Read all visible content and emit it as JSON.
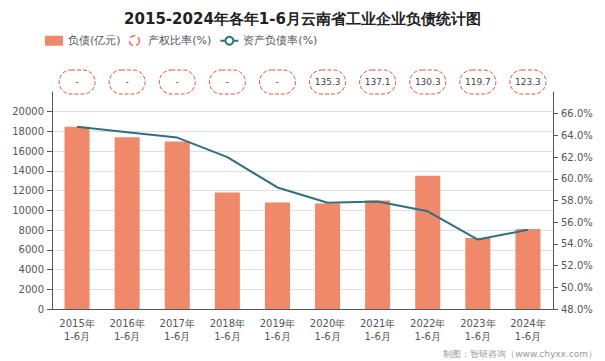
{
  "chart_data": {
    "type": "bar",
    "title": "2015-2024年各年1-6月云南省工业企业负债统计图",
    "categories": [
      "2015年\n1-6月",
      "2016年\n1-6月",
      "2017年\n1-6月",
      "2018年\n1-6月",
      "2019年\n1-6月",
      "2020年\n1-6月",
      "2021年\n1-6月",
      "2022年\n1-6月",
      "2023年\n1-6月",
      "2024年\n1-6月"
    ],
    "series": [
      {
        "name": "负债(亿元)",
        "type": "bar",
        "color": "#F0896A",
        "values": [
          18477,
          17423,
          16985,
          11800,
          10800,
          10700,
          11000,
          13500,
          7200,
          8100
        ]
      },
      {
        "name": "产权比率(%)",
        "type": "label",
        "color": "#E05030",
        "marker": "circle",
        "line_style": "dashed",
        "values": [
          null,
          null,
          null,
          null,
          null,
          135.3,
          137.1,
          130.3,
          119.7,
          123.3
        ],
        "value_labels": [
          "-",
          "-",
          "-",
          "-",
          "-",
          "135.3",
          "137.1",
          "130.3",
          "119.7",
          "123.3"
        ]
      },
      {
        "name": "资产负债率(%)",
        "type": "line",
        "color": "#2E7080",
        "axis": "y2",
        "values": [
          64.8,
          64.3,
          63.8,
          62.0,
          59.2,
          57.8,
          57.9,
          57.0,
          54.4,
          55.3
        ]
      }
    ],
    "ylim": [
      0,
      22000
    ],
    "yticks": [
      0,
      2000,
      4000,
      6000,
      8000,
      10000,
      12000,
      14000,
      16000,
      18000,
      20000
    ],
    "y2lim": [
      48.0,
      68.0
    ],
    "y2ticks": [
      {
        "value": 48.0,
        "label": "48.0%"
      },
      {
        "value": 50.0,
        "label": "50.0%"
      },
      {
        "value": 52.0,
        "label": "52.0%"
      },
      {
        "value": 54.0,
        "label": "54.0%"
      },
      {
        "value": 56.0,
        "label": "56.0%"
      },
      {
        "value": 58.0,
        "label": "58.0%"
      },
      {
        "value": 60.0,
        "label": "60.0%"
      },
      {
        "value": 62.0,
        "label": "62.0%"
      },
      {
        "value": 64.0,
        "label": "64.0%"
      },
      {
        "value": 66.0,
        "label": "66.0%"
      }
    ],
    "grid": true,
    "legend": "upper left",
    "annotations": [
      "制图：智研咨询（www.chyxx.com）"
    ]
  }
}
